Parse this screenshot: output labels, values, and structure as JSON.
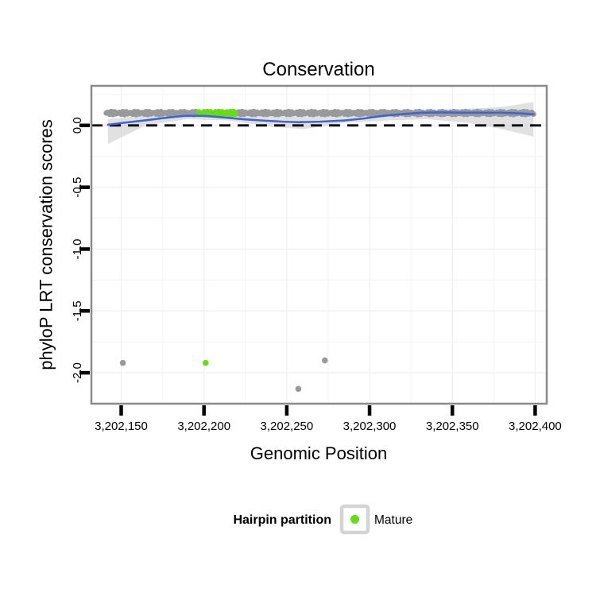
{
  "chart_data": {
    "type": "scatter",
    "title": "Conservation",
    "xlabel": "Genomic Position",
    "ylabel": "phyloP LRT conservation scores",
    "xlim": [
      3202132,
      3202407
    ],
    "ylim": [
      -2.25,
      0.32
    ],
    "x_ticks": [
      3202150,
      3202200,
      3202250,
      3202300,
      3202350,
      3202400
    ],
    "x_tick_labels": [
      "3,202,150",
      "3,202,200",
      "3,202,250",
      "3,202,300",
      "3,202,350",
      "3,202,400"
    ],
    "x_minor_ticks": [
      3202175,
      3202225,
      3202275,
      3202325,
      3202375
    ],
    "y_ticks": [
      0.0,
      -0.5,
      -1.0,
      -1.5,
      -2.0
    ],
    "y_tick_labels": [
      "0.0",
      "-0.5",
      "-1.0",
      "-1.5",
      "-2.0"
    ],
    "y_minor_ticks": [
      0.25,
      -0.25,
      -0.75,
      -1.25,
      -1.75
    ],
    "grid": true,
    "legend_position": "bottom",
    "hline": {
      "y": 0.0,
      "style": "dashed"
    },
    "point_band": {
      "note": "dense overlapping per-base conservation scores forming a horizontal band",
      "x_start": 3202141,
      "x_end": 3202399,
      "x_step": 1,
      "y": 0.1,
      "y_jitter": 0.012,
      "partition": "other"
    },
    "mature_band": {
      "note": "mature miRNA bases highlighted in green within the band",
      "x_start": 3202197,
      "x_end": 3202219,
      "x_step": 1,
      "y": 0.1,
      "y_jitter": 0.012,
      "partition": "Mature"
    },
    "outlier_points": [
      {
        "x": 3202151,
        "y": -1.92,
        "partition": "other"
      },
      {
        "x": 3202201,
        "y": -1.92,
        "partition": "Mature"
      },
      {
        "x": 3202257,
        "y": -2.13,
        "partition": "other"
      },
      {
        "x": 3202273,
        "y": -1.9,
        "partition": "other"
      }
    ],
    "smooth_line": {
      "x": [
        3202142,
        3202152,
        3202164,
        3202176,
        3202188,
        3202200,
        3202212,
        3202224,
        3202236,
        3202248,
        3202257,
        3202270,
        3202284,
        3202296,
        3202308,
        3202320,
        3202332,
        3202344,
        3202356,
        3202368,
        3202380,
        3202390,
        3202399
      ],
      "y": [
        0.005,
        0.022,
        0.04,
        0.06,
        0.077,
        0.077,
        0.064,
        0.05,
        0.039,
        0.03,
        0.026,
        0.03,
        0.039,
        0.055,
        0.077,
        0.092,
        0.103,
        0.105,
        0.103,
        0.103,
        0.103,
        0.098,
        0.09
      ]
    },
    "ribbon": {
      "x": [
        3202142,
        3202165,
        3202190,
        3202215,
        3202240,
        3202260,
        3202285,
        3202310,
        3202335,
        3202360,
        3202380,
        3202399
      ],
      "upper": [
        0.051,
        0.085,
        0.105,
        0.1,
        0.08,
        0.072,
        0.08,
        0.1,
        0.12,
        0.135,
        0.148,
        0.19
      ],
      "lower": [
        -0.15,
        0.0,
        0.05,
        0.04,
        -0.01,
        -0.03,
        0.02,
        0.04,
        0.05,
        0.02,
        -0.03,
        -0.09
      ]
    },
    "legend": {
      "title": "Hairpin partition",
      "position": "bottom",
      "items": [
        {
          "label": "Mature",
          "color": "#64DE10"
        }
      ]
    },
    "colors": {
      "point_other": "#999999",
      "point_mature": "#64DE10",
      "smooth_line": "#3E64D8",
      "ribbon": "#C8C8C8",
      "hline": "#000000",
      "panel_border": "#8A8A8A",
      "panel_bg": "#FFFFFF",
      "grid_major": "#F2F2F2",
      "grid_minor": "#F7F7F7",
      "tick": "#000000",
      "text": "#000000",
      "legend_key_border": "#D4D4D4",
      "legend_key_bg": "#FFFFFF"
    }
  }
}
